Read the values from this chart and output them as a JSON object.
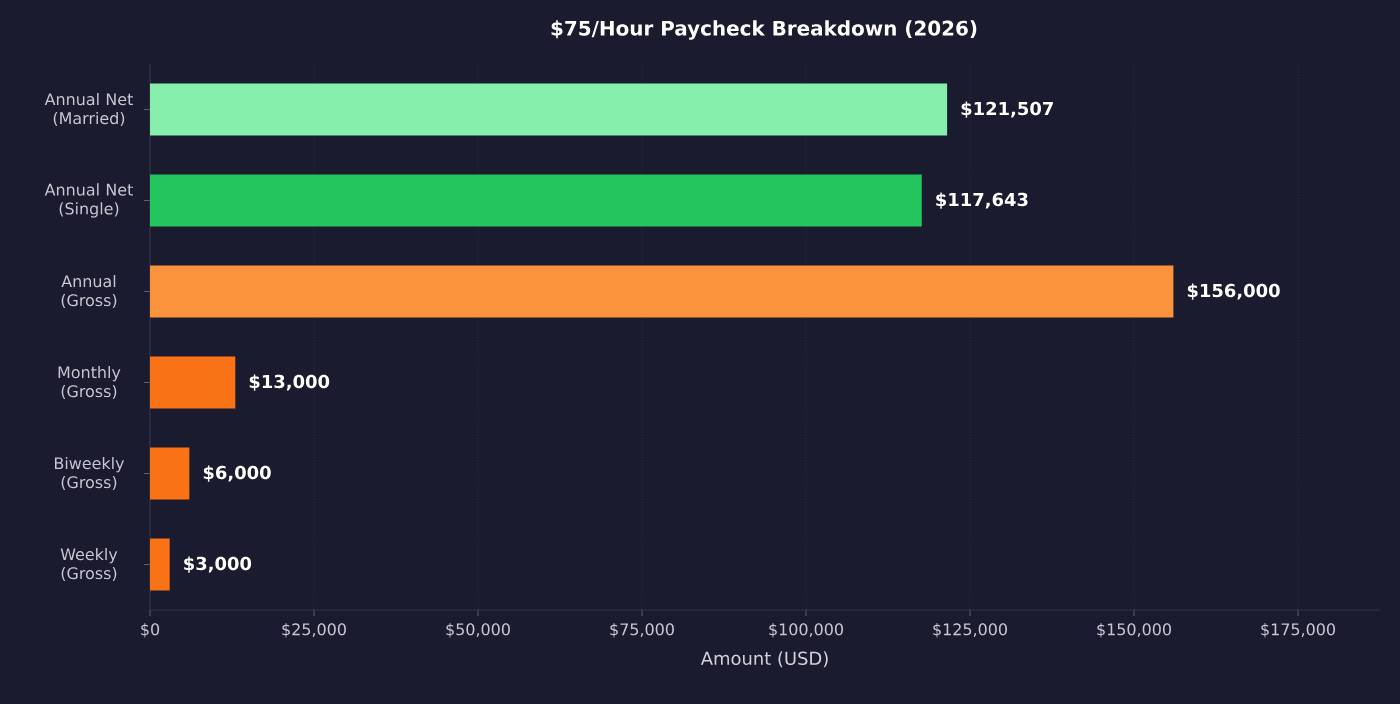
{
  "chart_data": {
    "type": "bar",
    "orientation": "horizontal",
    "title": "$75/Hour Paycheck Breakdown (2026)",
    "xlabel": "Amount (USD)",
    "categories": [
      "Annual Net (Married)",
      "Annual Net (Single)",
      "Annual (Gross)",
      "Monthly (Gross)",
      "Biweekly (Gross)",
      "Weekly (Gross)"
    ],
    "values": [
      121507,
      117643,
      156000,
      13000,
      6000,
      3000
    ],
    "colors": [
      "#86efac",
      "#22c55e",
      "#fb923c",
      "#f97316",
      "#f97316",
      "#f97316"
    ],
    "value_labels": [
      "$121,507",
      "$117,643",
      "$156,000",
      "$13,000",
      "$6,000",
      "$3,000"
    ],
    "xlim": [
      0,
      187500
    ],
    "xticks": [
      {
        "value": 0,
        "label": "$0"
      },
      {
        "value": 25000,
        "label": "$25,000"
      },
      {
        "value": 50000,
        "label": "$50,000"
      },
      {
        "value": 75000,
        "label": "$75,000"
      },
      {
        "value": 100000,
        "label": "$100,000"
      },
      {
        "value": 125000,
        "label": "$125,000"
      },
      {
        "value": 150000,
        "label": "$150,000"
      },
      {
        "value": 175000,
        "label": "$175,000"
      }
    ],
    "grid": "x"
  }
}
